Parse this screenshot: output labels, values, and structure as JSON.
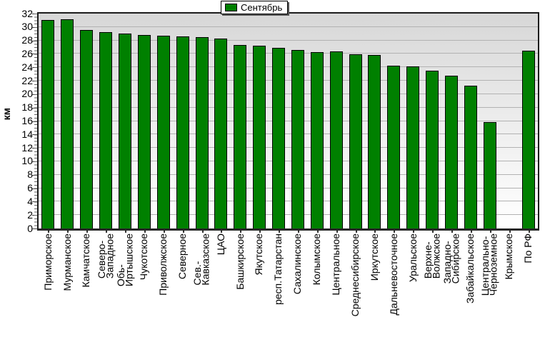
{
  "legend": {
    "label": "Сентябрь",
    "swatch_color": "#008000"
  },
  "chart_data": {
    "type": "bar",
    "title": "",
    "xlabel": "",
    "ylabel": "км",
    "ylim": [
      0,
      32
    ],
    "yticks": [
      0,
      2,
      4,
      6,
      8,
      10,
      12,
      14,
      16,
      18,
      20,
      22,
      24,
      26,
      28,
      30,
      32
    ],
    "grid": true,
    "legend_position": "top-center",
    "bar_color": "#008000",
    "bar_border_color": "#000000",
    "categories": [
      "Приморское",
      "Мурманское",
      "Камчатское",
      "Северо-Западное",
      "Обь-Иртышское",
      "Чукотское",
      "Приволжское",
      "Северное",
      "Сев.-Кавказское",
      "ЦАО",
      "Башкирское",
      "Якутское",
      "респ.Татарстан",
      "Сахалинское",
      "Колымское",
      "Центральное",
      "Среднесибирское",
      "Иркутское",
      "Дальневосточное",
      "Уральское",
      "Верхне-Волжское",
      "Западно-Сибирское",
      "Забайкальское",
      "Центрально-Черноземное",
      "Крымское",
      "По РФ"
    ],
    "categories_display": [
      "Приморское",
      "Мурманское",
      "Камчатское",
      "Северо-\nЗападное",
      "Обь-\nИртышское",
      "Чукотское",
      "Приволжское",
      "Северное",
      "Сев.-\nКавказское",
      "ЦАО",
      "Башкирское",
      "Якутское",
      "респ.Татарстан",
      "Сахалинское",
      "Колымское",
      "Центральное",
      "Среднесибирское",
      "Иркутское",
      "Дальневосточное",
      "Уральское",
      "Верхне-\nВолжское",
      "Западно-\nСибирское",
      "Забайкальское",
      "Центрально-\nЧерноземное",
      "Крымское",
      "По РФ"
    ],
    "series": [
      {
        "name": "Сентябрь",
        "values": [
          31.0,
          31.1,
          29.6,
          29.2,
          29.0,
          28.8,
          28.7,
          28.6,
          28.5,
          28.3,
          27.3,
          27.2,
          26.9,
          26.6,
          26.3,
          26.4,
          25.9,
          25.8,
          24.2,
          24.1,
          23.5,
          22.8,
          21.3,
          15.8,
          null,
          26.5
        ]
      }
    ]
  }
}
